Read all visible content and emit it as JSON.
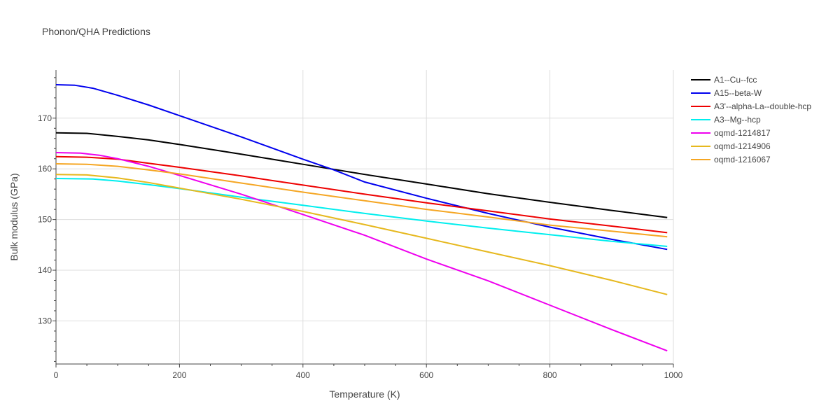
{
  "chart_data": {
    "type": "line",
    "title": "Phonon/QHA Predictions",
    "xlabel": "Temperature (K)",
    "ylabel": "Bulk modulus (GPa)",
    "xlim": [
      0,
      1000
    ],
    "ylim": [
      121.5,
      179.5
    ],
    "x_ticks": [
      0,
      200,
      400,
      600,
      800,
      1000
    ],
    "y_ticks": [
      130,
      140,
      150,
      160,
      170
    ],
    "grid": true,
    "legend_position": "top-right",
    "series": [
      {
        "name": "A1--Cu--fcc",
        "color": "#000000",
        "x": [
          0,
          50,
          100,
          150,
          200,
          300,
          400,
          500,
          600,
          700,
          800,
          900,
          990
        ],
        "y": [
          167.1,
          167.0,
          166.4,
          165.7,
          164.8,
          162.9,
          160.9,
          158.9,
          157.0,
          155.1,
          153.4,
          151.8,
          150.4
        ]
      },
      {
        "name": "A15--beta-W",
        "color": "#0000ee",
        "x": [
          0,
          30,
          60,
          100,
          150,
          200,
          300,
          400,
          450,
          500,
          600,
          700,
          800,
          900,
          990
        ],
        "y": [
          176.6,
          176.5,
          175.9,
          174.5,
          172.6,
          170.5,
          166.3,
          161.9,
          159.8,
          157.4,
          154.2,
          151.2,
          148.5,
          146.1,
          144.1
        ]
      },
      {
        "name": "A3'--alpha-La--double-hcp",
        "color": "#ee0000",
        "x": [
          0,
          50,
          100,
          150,
          200,
          300,
          400,
          500,
          600,
          700,
          800,
          900,
          990
        ],
        "y": [
          162.4,
          162.3,
          161.9,
          161.1,
          160.3,
          158.6,
          156.8,
          155.0,
          153.3,
          151.7,
          150.1,
          148.7,
          147.4
        ]
      },
      {
        "name": "A3--Mg--hcp",
        "color": "#00eeee",
        "x": [
          0,
          60,
          100,
          150,
          200,
          300,
          400,
          500,
          600,
          700,
          800,
          900,
          990
        ],
        "y": [
          158.1,
          158.0,
          157.6,
          156.9,
          156.1,
          154.4,
          152.8,
          151.2,
          149.7,
          148.3,
          147.0,
          145.7,
          144.7
        ]
      },
      {
        "name": "oqmd-1214817",
        "color": "#ee00ee",
        "x": [
          0,
          40,
          70,
          100,
          150,
          200,
          300,
          400,
          500,
          600,
          700,
          800,
          900,
          990
        ],
        "y": [
          163.2,
          163.1,
          162.7,
          162.0,
          160.5,
          158.7,
          155.0,
          151.0,
          146.9,
          142.2,
          137.9,
          133.1,
          128.3,
          124.1
        ]
      },
      {
        "name": "oqmd-1214906",
        "color": "#e6b81e",
        "x": [
          0,
          50,
          100,
          150,
          200,
          300,
          400,
          500,
          600,
          700,
          800,
          900,
          990
        ],
        "y": [
          158.9,
          158.8,
          158.2,
          157.3,
          156.2,
          154.0,
          151.6,
          149.0,
          146.3,
          143.6,
          140.9,
          138.0,
          135.2
        ]
      },
      {
        "name": "oqmd-1216067",
        "color": "#f5a623",
        "x": [
          0,
          50,
          100,
          150,
          200,
          300,
          400,
          500,
          600,
          700,
          800,
          900,
          990
        ],
        "y": [
          161.0,
          160.9,
          160.5,
          159.8,
          159.0,
          157.2,
          155.4,
          153.7,
          152.0,
          150.5,
          148.9,
          147.7,
          146.6
        ]
      }
    ]
  }
}
